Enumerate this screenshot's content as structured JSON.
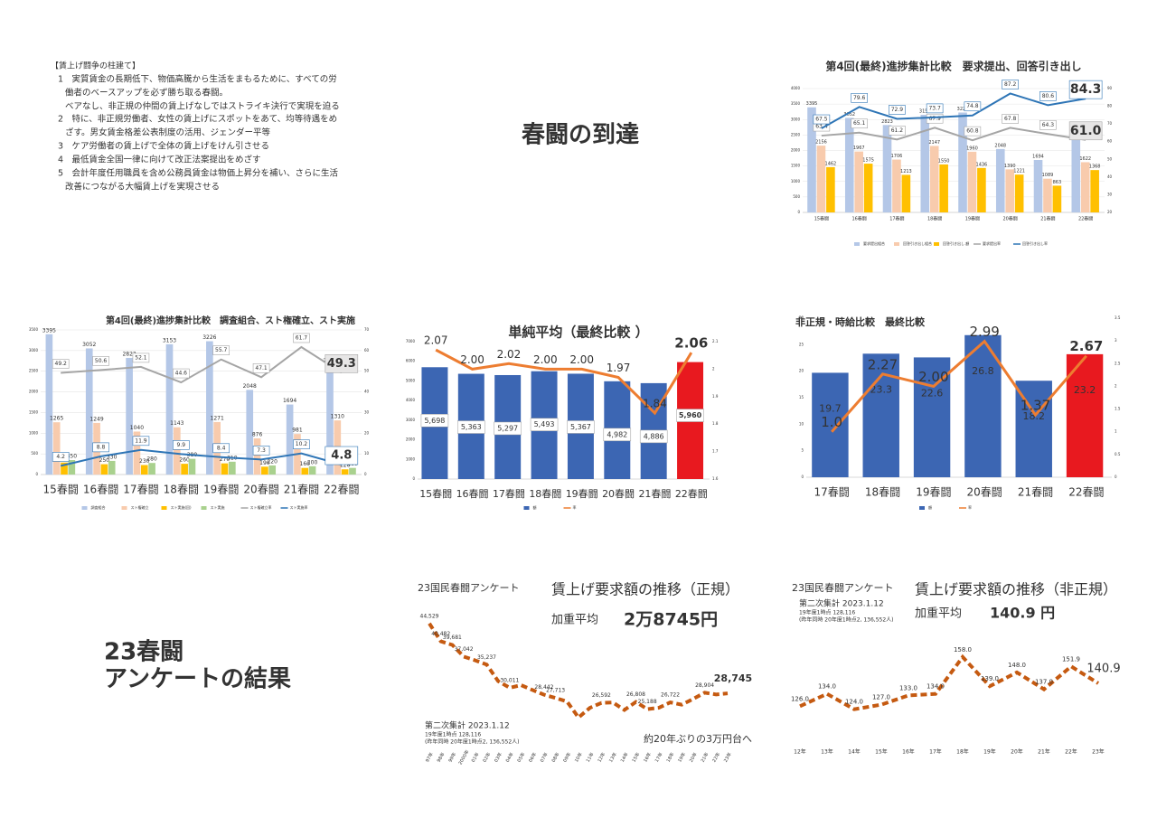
{
  "texts": {
    "pillars_title": "【賃上げ闘争の柱建て】",
    "pillars": [
      "1　実質賃金の長期低下、物価高騰から生活をまもるために、すべての労",
      "働者のベースアップを必ず勝ち取る春闘。",
      "ベアなし、非正規の仲間の賃上げなしではストライキ決行で実現を迫る",
      "2　特に、非正規労働者、女性の賃上げにスポットをあて、均等待遇をめ",
      "ざす。男女賃金格差公表制度の活用、ジェンダー平等",
      "3　ケア労働者の賃上げで全体の賃上げをけん引させる",
      "4　最低賃金全国一律に向けて改正法案提出をめざす",
      "5　会計年度任用職員を含め公務員賃金は物価上昇分を補い、さらに生活",
      "改善につながる大幅賃上げを実現させる"
    ],
    "heading1": "春闘の到達",
    "heading2": [
      "23春闘",
      "アンケートの結果"
    ]
  },
  "chart_data": [
    {
      "type": "combo",
      "title": "第4回(最終)進捗集計比較　要求提出、回答引き出し",
      "categories": [
        "15春闘",
        "16春闘",
        "17春闘",
        "18春闘",
        "19春闘",
        "20春闘",
        "21春闘",
        "22春闘"
      ],
      "ylim": [
        0,
        4000
      ],
      "yticks": [
        0,
        500,
        1000,
        1500,
        2000,
        2500,
        3000,
        3500,
        4000
      ],
      "y2lim": [
        20,
        90
      ],
      "y2ticks": [
        20,
        30,
        40,
        50,
        60,
        70,
        80,
        90
      ],
      "grid": true,
      "series": [
        {
          "name": "要求提出組合",
          "kind": "bar",
          "color": "#b4c7e7",
          "values": [
            3395,
            3052,
            2823,
            3153,
            3226,
            2048,
            1694,
            2661
          ]
        },
        {
          "name": "回答引き出し組合",
          "kind": "bar",
          "color": "#f8cbad",
          "values": [
            2156,
            1967,
            1706,
            2147,
            1960,
            1390,
            1089,
            1622
          ]
        },
        {
          "name": "回答引き出し 額",
          "kind": "bar",
          "color": "#ffc000",
          "values": [
            1462,
            1575,
            1213,
            1550,
            1436,
            1221,
            863,
            1368
          ]
        },
        {
          "name": "要求提出率",
          "kind": "line",
          "axis": "y2",
          "color": "#a5a5a5",
          "values": [
            63.4,
            65.1,
            61.2,
            67.9,
            60.8,
            67.8,
            64.3,
            61.0
          ],
          "value_labels": [
            "63.4",
            "65.1",
            "61.2",
            "67.9",
            "60.8",
            "67.8",
            "64.3",
            "61.0"
          ]
        },
        {
          "name": "回答引き出し率",
          "kind": "line",
          "axis": "y2",
          "color": "#2e75b6",
          "values": [
            67.5,
            79.6,
            72.9,
            73.7,
            74.8,
            87.2,
            80.6,
            84.3
          ]
        }
      ]
    },
    {
      "type": "combo",
      "title": "第4回(最終)進捗集計比較　調査組合、スト権確立、スト実施",
      "categories": [
        "15春闘",
        "16春闘",
        "17春闘",
        "18春闘",
        "19春闘",
        "20春闘",
        "21春闘",
        "22春闘"
      ],
      "ylim": [
        0,
        3500
      ],
      "yticks": [
        0,
        500,
        1000,
        1500,
        2000,
        2500,
        3000,
        3500
      ],
      "y2lim": [
        0,
        70
      ],
      "y2ticks": [
        0,
        10,
        20,
        30,
        40,
        50,
        60,
        70
      ],
      "grid": true,
      "series": [
        {
          "name": "調査組合",
          "kind": "bar",
          "color": "#b4c7e7",
          "values": [
            3395,
            3052,
            2823,
            3153,
            3226,
            2048,
            1694,
            2661
          ]
        },
        {
          "name": "スト権確立",
          "kind": "bar",
          "color": "#f8cbad",
          "values": [
            1265,
            1249,
            1040,
            1143,
            1271,
            876,
            981,
            1310
          ]
        },
        {
          "name": "スト実施(回)",
          "kind": "bar",
          "color": "#ffc000",
          "values": [
            290,
            250,
            230,
            260,
            270,
            190,
            160,
            126
          ]
        },
        {
          "name": "スト実施",
          "kind": "bar",
          "color": "#a9d18e",
          "values": [
            350,
            330,
            280,
            380,
            310,
            220,
            200,
            160
          ]
        },
        {
          "name": "スト権確立率",
          "kind": "line",
          "axis": "y2",
          "color": "#a5a5a5",
          "values": [
            49.2,
            50.6,
            52.1,
            44.6,
            55.7,
            47.1,
            61.7,
            49.3
          ]
        },
        {
          "name": "スト実施率",
          "kind": "line",
          "axis": "y2",
          "color": "#2e75b6",
          "values": [
            4.2,
            8.8,
            11.9,
            9.9,
            8.4,
            7.3,
            10.2,
            4.8
          ]
        }
      ]
    },
    {
      "type": "combo",
      "title": "単純平均（最終比較 ）",
      "categories": [
        "15春闘",
        "16春闘",
        "17春闘",
        "18春闘",
        "19春闘",
        "20春闘",
        "21春闘",
        "22春闘"
      ],
      "ylim": [
        0,
        7000
      ],
      "yticks": [
        0,
        1000,
        2000,
        3000,
        4000,
        5000,
        6000,
        7000
      ],
      "y2lim": [
        1.6,
        2.1
      ],
      "y2ticks": [
        1.6,
        1.7,
        1.8,
        1.9,
        2.0,
        2.1
      ],
      "grid": false,
      "series": [
        {
          "name": "額",
          "kind": "bar",
          "color": "#3c66b3",
          "colors": [
            "#3c66b3",
            "#3c66b3",
            "#3c66b3",
            "#3c66b3",
            "#3c66b3",
            "#3c66b3",
            "#3c66b3",
            "#e8191f"
          ],
          "values": [
            5698,
            5363,
            5297,
            5493,
            5367,
            4982,
            4886,
            5960
          ],
          "value_labels": [
            "5,698",
            "5,363",
            "5,297",
            "5,493",
            "5,367",
            "4,982",
            "4,886",
            "5,960"
          ]
        },
        {
          "name": "率",
          "kind": "line",
          "axis": "y2",
          "color": "#ed7d31",
          "values": [
            2.07,
            2.0,
            2.02,
            2.0,
            2.0,
            1.97,
            1.84,
            2.06
          ],
          "value_labels": [
            "2.07",
            "2.00",
            "2.02",
            "2.00",
            "2.00",
            "1.97",
            "1.84",
            "2.06"
          ]
        }
      ]
    },
    {
      "type": "combo",
      "title": "非正規・時給比較　最終比較",
      "categories": [
        "17春闘",
        "18春闘",
        "19春闘",
        "20春闘",
        "21春闘",
        "22春闘"
      ],
      "ylim": [
        0,
        30
      ],
      "yticks": [
        0,
        5,
        10,
        15,
        20,
        25,
        30
      ],
      "y2lim": [
        0,
        3.5
      ],
      "y2ticks": [
        0,
        0.5,
        1,
        1.5,
        2,
        2.5,
        3,
        3.5
      ],
      "grid": false,
      "series": [
        {
          "name": "額",
          "kind": "bar",
          "color": "#3c66b3",
          "colors": [
            "#3c66b3",
            "#3c66b3",
            "#3c66b3",
            "#3c66b3",
            "#3c66b3",
            "#e8191f"
          ],
          "values": [
            19.7,
            23.3,
            22.6,
            26.8,
            18.2,
            23.2
          ]
        },
        {
          "name": "率",
          "kind": "line",
          "axis": "y2",
          "color": "#ed7d31",
          "values": [
            1.0,
            2.27,
            2.0,
            2.99,
            1.37,
            2.67
          ],
          "value_labels": [
            "1.0",
            "2.27",
            "2.00",
            "2.99",
            "1.37",
            "2.67"
          ]
        }
      ]
    },
    {
      "type": "line",
      "source": "23国民春闘アンケート",
      "title": "賃上げ要求額の推移（正規）",
      "headline_label": "加重平均",
      "headline": "2万8745円",
      "notes": [
        "第二次集計 2023.1.12",
        "19年度1時点 128,116",
        "(昨年同時 20年度1時点2, 136,552人)"
      ],
      "annotation": "約20年ぶりの3万円台へ",
      "categories": [
        "97年",
        "98年",
        "99年",
        "2000年",
        "01年",
        "02年",
        "03年",
        "04年",
        "05年",
        "06年",
        "07年",
        "08年",
        "09年",
        "10年",
        "11年",
        "12年",
        "13年",
        "14年",
        "15年",
        "16年",
        "17年",
        "18年",
        "19年",
        "20年",
        "21年",
        "22年",
        "23年"
      ],
      "ylim": [
        20000,
        45500
      ],
      "color": "#c55a11",
      "values": [
        44529,
        40482,
        39681,
        37042,
        36200,
        35237,
        31500,
        30011,
        30600,
        29500,
        28442,
        27713,
        26900,
        23300,
        25500,
        26592,
        26700,
        25000,
        26808,
        25188,
        25500,
        26722,
        26200,
        27500,
        28904,
        28500,
        28745
      ],
      "value_labels": [
        "44,529",
        "40,482",
        "39,681",
        "37,042",
        null,
        "35,237",
        null,
        "30,011",
        null,
        null,
        "28,442",
        "27,713",
        null,
        null,
        null,
        "26,592",
        null,
        null,
        "26,808",
        "25,188",
        null,
        "26,722",
        null,
        null,
        "28,904",
        null,
        "28,745"
      ]
    },
    {
      "type": "line",
      "source": "23国民春闘アンケート",
      "title": "賃上げ要求額の推移（非正規）",
      "headline_label": "加重平均",
      "headline": "140.9 円",
      "notes": [
        "第二次集計 2023.1.12",
        "19年度1時点 128,116",
        "(昨年同時 20年度1時点2, 136,552人)"
      ],
      "categories": [
        "12年",
        "13年",
        "14年",
        "15年",
        "16年",
        "17年",
        "18年",
        "19年",
        "20年",
        "21年",
        "22年",
        "23年"
      ],
      "ylim": [
        115,
        165
      ],
      "color": "#c55a11",
      "values": [
        126.0,
        134.0,
        124.0,
        127.0,
        133.0,
        134.0,
        158.0,
        139.0,
        148.0,
        137.0,
        151.9,
        140.9
      ],
      "value_labels": [
        "126.0",
        "134.0",
        "124.0",
        "127.0",
        "133.0",
        "134.0",
        "158.0",
        "139.0",
        "148.0",
        "137.0",
        "151.9",
        "140.9"
      ]
    }
  ]
}
